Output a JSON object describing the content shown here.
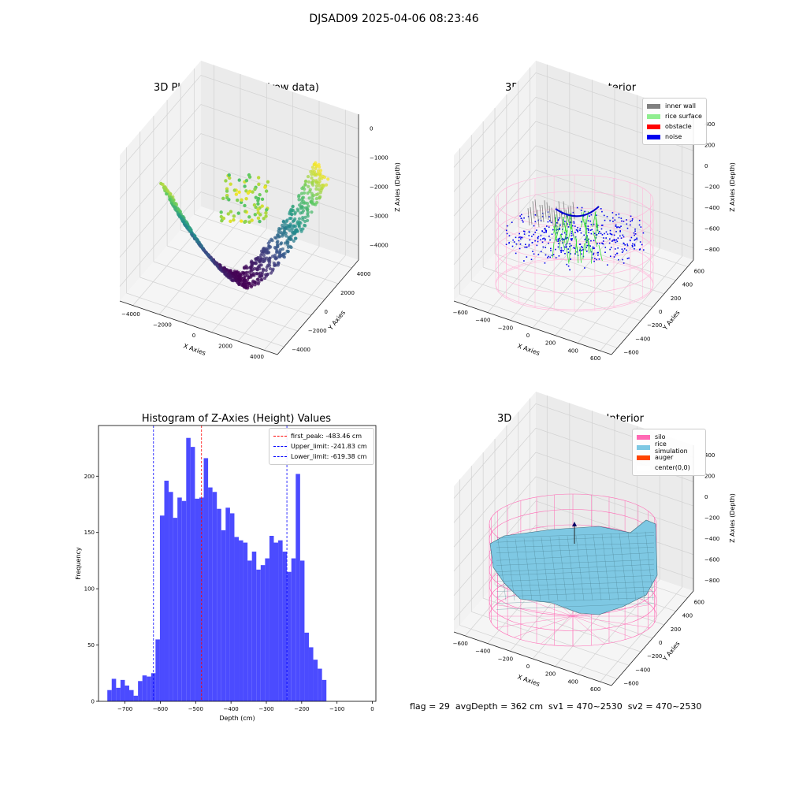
{
  "figure_title": "DJSAD09 2025-04-06 08:23:46",
  "status_line": "flag = 29  avgDepth = 362 cm  sv1 = 470~2530  sv2 = 470~2530",
  "colors": {
    "histogram": "#4b4bff",
    "first_peak": "#ff0000",
    "limits": "#0000ff",
    "inner_wall": "#808080",
    "rice_surface": "#90ee90",
    "obstacle": "#ff0000",
    "noise": "#0000ee",
    "silo": "#ff69b4",
    "rice_simulation": "#7ec8e3",
    "auger": "#ff4500",
    "center": "#ffffff"
  },
  "chart_data": [
    {
      "type": "scatter",
      "title": "3D Plot of Silo Interior(row data)",
      "xlabel": "X Axies",
      "ylabel": "Y Axies",
      "zlabel": "Z Axies (Depth)",
      "x_ticks": [
        "−4000",
        "−2000",
        "0",
        "2000",
        "4000"
      ],
      "y_ticks": [
        "−4000",
        "−2000",
        "0",
        "2000",
        "4000"
      ],
      "z_ticks": [
        "0",
        "−1000",
        "−2000",
        "−3000",
        "−4000"
      ],
      "colormap": "viridis"
    },
    {
      "type": "scatter",
      "title": "3D classify of Silo Interior",
      "xlabel": "X Axies",
      "ylabel": "Y Axies",
      "zlabel": "Z Axies (Depth)",
      "x_ticks": [
        "−600",
        "−400",
        "−200",
        "0",
        "200",
        "400",
        "600"
      ],
      "y_ticks": [
        "−600",
        "−400",
        "−200",
        "0",
        "200",
        "400",
        "600"
      ],
      "z_ticks": [
        "400",
        "200",
        "0",
        "−200",
        "−400",
        "−600",
        "−800"
      ],
      "legend": [
        "inner wall",
        "rice surface",
        "obstacle",
        "noise"
      ],
      "legend_position": "top-right"
    },
    {
      "type": "bar",
      "title": "Histogram of Z-Axies (Height) Values",
      "xlabel": "Depth (cm)",
      "ylabel": "Frequency",
      "x_ticks": [
        "−700",
        "−600",
        "−500",
        "−400",
        "−300",
        "−200",
        "−100",
        "0"
      ],
      "y_ticks": [
        "0",
        "50",
        "100",
        "150",
        "200"
      ],
      "xlim": [
        -775,
        10
      ],
      "ylim": [
        0,
        245
      ],
      "bin_start": -750,
      "bin_width": 12.4,
      "values": [
        10,
        20,
        12,
        19,
        14,
        10,
        5,
        18,
        23,
        22,
        25,
        55,
        165,
        196,
        186,
        163,
        181,
        178,
        234,
        226,
        180,
        181,
        216,
        190,
        186,
        171,
        152,
        172,
        167,
        146,
        143,
        141,
        125,
        133,
        117,
        121,
        127,
        147,
        141,
        143,
        133,
        115,
        127,
        202,
        125,
        61,
        48,
        37,
        29,
        19
      ],
      "lines": [
        {
          "name": "first_peak: -483.46 cm",
          "x": -483.46,
          "color": "#ff0000"
        },
        {
          "name": "Upper_limit: -241.83 cm",
          "x": -241.83,
          "color": "#0000ff"
        },
        {
          "name": "Lower_limit: -619.38 cm",
          "x": -619.38,
          "color": "#0000ff"
        }
      ],
      "legend_position": "top-right"
    },
    {
      "type": "surface",
      "title": "3D simulation of Silo Interior",
      "xlabel": "X Axies",
      "ylabel": "Y Axies",
      "zlabel": "Z Axies (Depth)",
      "x_ticks": [
        "−600",
        "−400",
        "−200",
        "0",
        "200",
        "400",
        "600"
      ],
      "y_ticks": [
        "−600",
        "−400",
        "−200",
        "0",
        "200",
        "400",
        "600"
      ],
      "z_ticks": [
        "400",
        "200",
        "0",
        "−200",
        "−400",
        "−600",
        "−800"
      ],
      "legend": [
        "silo",
        "rice simulation",
        "auger",
        "center(0,0)"
      ],
      "legend_position": "top-right"
    }
  ]
}
